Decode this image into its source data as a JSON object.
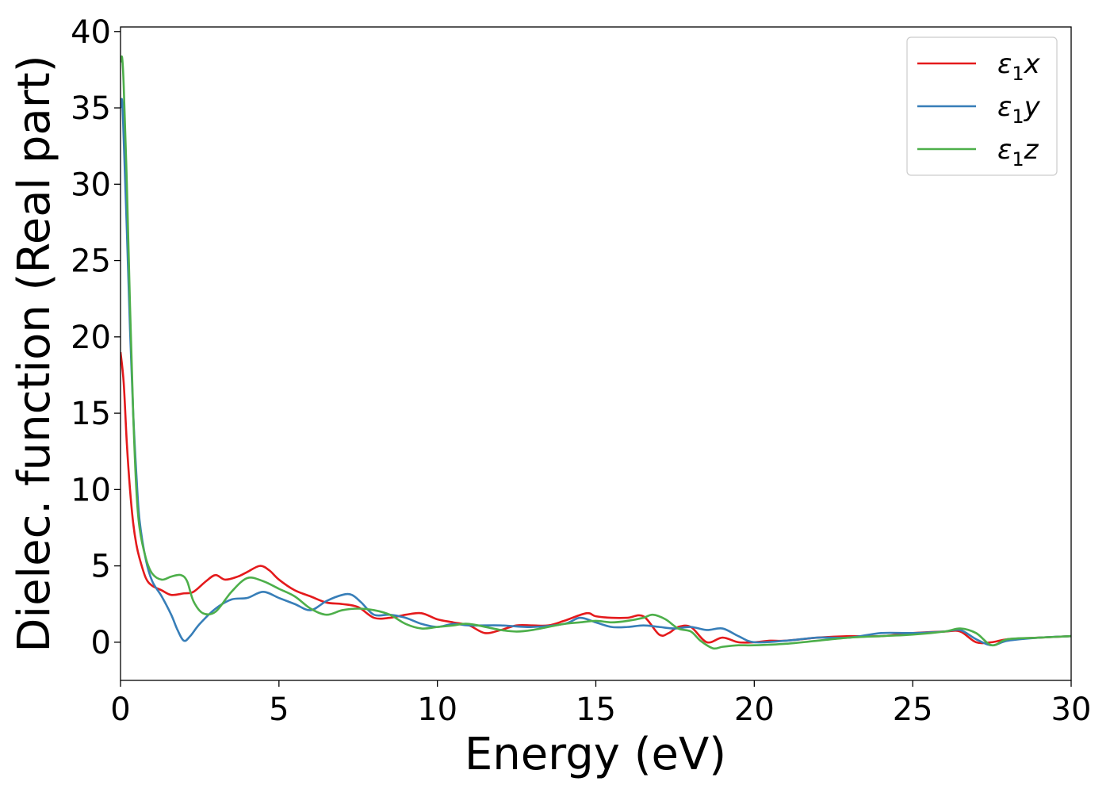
{
  "chart_data": {
    "type": "line",
    "title": "",
    "xlabel": "Energy (eV)",
    "ylabel": "Dielec. function (Real part)",
    "xlim": [
      0,
      30
    ],
    "ylim": [
      -2.5,
      40.3
    ],
    "xticks": [
      "0",
      "5",
      "10",
      "15",
      "20",
      "25",
      "30"
    ],
    "yticks": [
      "0",
      "5",
      "10",
      "15",
      "20",
      "25",
      "30",
      "35",
      "40"
    ],
    "grid": false,
    "legend_position": "top-right",
    "series": [
      {
        "name": "ε₁x",
        "legend_base": "ε",
        "legend_sub": "1",
        "legend_var": "x",
        "color": "#e41a1c",
        "x": [
          0,
          0.1,
          0.2,
          0.3,
          0.4,
          0.5,
          0.6,
          0.8,
          1.0,
          1.3,
          1.6,
          2.0,
          2.3,
          2.7,
          3.0,
          3.3,
          3.7,
          4.0,
          4.4,
          4.7,
          5.0,
          5.5,
          6.0,
          6.5,
          7.0,
          7.5,
          8.0,
          8.5,
          9.0,
          9.5,
          10.0,
          10.5,
          11.0,
          11.5,
          12.0,
          12.5,
          13.0,
          13.5,
          14.0,
          14.7,
          15.0,
          15.5,
          16.0,
          16.5,
          17.0,
          17.3,
          17.6,
          18.0,
          18.5,
          19.0,
          19.5,
          20.0,
          20.5,
          21.0,
          22.0,
          23.0,
          24.0,
          25.0,
          26.0,
          26.5,
          27.0,
          27.5,
          28.0,
          29.0,
          30.0
        ],
        "y": [
          19.0,
          17.0,
          13.0,
          10.0,
          7.8,
          6.4,
          5.5,
          4.2,
          3.7,
          3.4,
          3.1,
          3.2,
          3.3,
          4.0,
          4.4,
          4.1,
          4.3,
          4.6,
          5.0,
          4.7,
          4.1,
          3.4,
          3.0,
          2.6,
          2.5,
          2.3,
          1.6,
          1.6,
          1.8,
          1.9,
          1.5,
          1.3,
          1.1,
          0.6,
          0.8,
          1.1,
          1.1,
          1.1,
          1.4,
          1.9,
          1.7,
          1.6,
          1.6,
          1.7,
          0.5,
          0.6,
          1.0,
          1.0,
          0.0,
          0.3,
          0.0,
          0.0,
          0.1,
          0.1,
          0.3,
          0.4,
          0.4,
          0.6,
          0.7,
          0.7,
          0.0,
          0.0,
          0.2,
          0.3,
          0.4
        ]
      },
      {
        "name": "ε₁y",
        "legend_base": "ε",
        "legend_sub": "1",
        "legend_var": "y",
        "color": "#377eb8",
        "x": [
          0,
          0.05,
          0.1,
          0.2,
          0.3,
          0.4,
          0.5,
          0.6,
          0.8,
          1.0,
          1.3,
          1.6,
          1.8,
          2.0,
          2.2,
          2.5,
          3.0,
          3.5,
          4.0,
          4.5,
          5.0,
          5.5,
          6.0,
          6.5,
          7.0,
          7.3,
          7.6,
          8.0,
          8.5,
          9.0,
          9.5,
          10.0,
          10.5,
          11.0,
          12.0,
          13.0,
          14.0,
          14.5,
          15.0,
          15.5,
          16.0,
          16.5,
          17.0,
          17.5,
          18.0,
          18.5,
          19.0,
          19.5,
          20.0,
          21.0,
          22.0,
          23.0,
          24.0,
          25.0,
          26.0,
          26.5,
          27.0,
          27.5,
          28.0,
          29.0,
          30.0
        ],
        "y": [
          35.0,
          35.5,
          33.0,
          27.0,
          20.5,
          15.0,
          11.0,
          8.0,
          5.4,
          4.0,
          3.0,
          1.8,
          0.8,
          0.1,
          0.4,
          1.2,
          2.2,
          2.8,
          2.9,
          3.3,
          2.9,
          2.5,
          2.1,
          2.7,
          3.1,
          3.1,
          2.6,
          1.8,
          1.8,
          1.6,
          1.2,
          1.0,
          1.2,
          1.1,
          1.1,
          1.0,
          1.2,
          1.6,
          1.3,
          1.0,
          1.0,
          1.1,
          1.0,
          0.9,
          1.0,
          0.8,
          0.9,
          0.4,
          0.0,
          0.1,
          0.3,
          0.3,
          0.6,
          0.6,
          0.7,
          0.8,
          0.2,
          -0.2,
          0.1,
          0.3,
          0.4
        ]
      },
      {
        "name": "ε₁z",
        "legend_base": "ε",
        "legend_sub": "1",
        "legend_var": "z",
        "color": "#4daf4a",
        "x": [
          0,
          0.05,
          0.1,
          0.2,
          0.3,
          0.4,
          0.5,
          0.6,
          0.8,
          1.0,
          1.3,
          1.6,
          1.9,
          2.1,
          2.3,
          2.6,
          3.0,
          3.5,
          4.0,
          4.5,
          5.0,
          5.5,
          6.0,
          6.5,
          7.0,
          7.5,
          8.0,
          8.5,
          9.0,
          9.5,
          10.0,
          10.5,
          11.0,
          12.0,
          12.5,
          13.0,
          14.0,
          14.5,
          15.0,
          15.5,
          16.0,
          16.5,
          16.8,
          17.2,
          17.6,
          18.0,
          18.3,
          18.7,
          19.0,
          19.5,
          20.0,
          21.0,
          22.0,
          23.0,
          24.0,
          25.0,
          26.0,
          26.5,
          27.0,
          27.5,
          28.0,
          29.0,
          30.0
        ],
        "y": [
          38.0,
          38.3,
          36.5,
          30.0,
          22.0,
          15.0,
          10.0,
          7.5,
          5.5,
          4.5,
          4.1,
          4.3,
          4.4,
          4.0,
          2.7,
          1.9,
          2.0,
          3.3,
          4.2,
          4.0,
          3.5,
          3.0,
          2.2,
          1.8,
          2.1,
          2.2,
          2.1,
          1.8,
          1.2,
          0.9,
          1.0,
          1.1,
          1.2,
          0.8,
          0.7,
          0.8,
          1.2,
          1.3,
          1.4,
          1.3,
          1.4,
          1.6,
          1.8,
          1.5,
          0.9,
          0.7,
          0.1,
          -0.4,
          -0.3,
          -0.2,
          -0.2,
          -0.1,
          0.1,
          0.3,
          0.4,
          0.5,
          0.7,
          0.9,
          0.6,
          -0.2,
          0.2,
          0.3,
          0.4
        ]
      }
    ]
  }
}
